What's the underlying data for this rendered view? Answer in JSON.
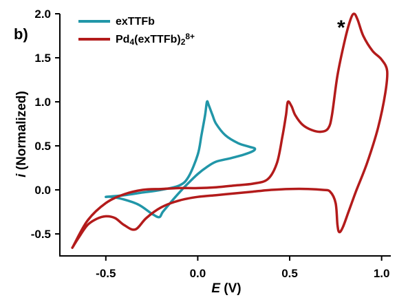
{
  "chart_data": {
    "type": "line",
    "panel_label": "b)",
    "xlabel_var": "E",
    "xlabel_unit": " (V)",
    "ylabel_var": "i",
    "ylabel_rest": " (Normalized)",
    "xlim": [
      -0.75,
      1.05
    ],
    "ylim": [
      -0.75,
      2.0
    ],
    "x_ticks": [
      -0.5,
      0.0,
      0.5,
      1.0
    ],
    "x_tick_labels": [
      "-0.5",
      "0.0",
      "0.5",
      "1.0"
    ],
    "y_ticks": [
      -0.5,
      0.0,
      0.5,
      1.0,
      1.5,
      2.0
    ],
    "y_tick_labels": [
      "-0.5",
      "0.0",
      "0.5",
      "1.0",
      "1.5",
      "2.0"
    ],
    "grid": false,
    "legend_position": "top-left",
    "annotation": {
      "text": "*",
      "x": 0.78,
      "y": 1.86
    },
    "series": [
      {
        "name": "exTTFb",
        "legend_parts": [
          {
            "text": "exTTFb",
            "kind": "normal"
          }
        ],
        "color": "#2196a8",
        "x": [
          -0.5,
          -0.4,
          -0.3,
          -0.2,
          -0.1,
          -0.05,
          0.0,
          0.02,
          0.04,
          0.05,
          0.06,
          0.08,
          0.1,
          0.15,
          0.22,
          0.28,
          0.31,
          0.3,
          0.25,
          0.18,
          0.1,
          0.05,
          0.0,
          -0.05,
          -0.1,
          -0.15,
          -0.19,
          -0.21,
          -0.25,
          -0.32,
          -0.4,
          -0.47,
          -0.5
        ],
        "y": [
          -0.08,
          -0.06,
          -0.03,
          0.0,
          0.05,
          0.15,
          0.4,
          0.62,
          0.85,
          1.0,
          0.96,
          0.85,
          0.75,
          0.62,
          0.53,
          0.49,
          0.47,
          0.44,
          0.4,
          0.36,
          0.32,
          0.26,
          0.18,
          0.08,
          -0.03,
          -0.15,
          -0.25,
          -0.31,
          -0.27,
          -0.17,
          -0.11,
          -0.08,
          -0.08
        ]
      },
      {
        "name": "Pd4(exTTFb)2 8+",
        "legend_parts": [
          {
            "text": "Pd",
            "kind": "normal"
          },
          {
            "text": "4",
            "kind": "sub"
          },
          {
            "text": "(exTTFb)",
            "kind": "normal"
          },
          {
            "text": "2",
            "kind": "sub"
          },
          {
            "text": "8+",
            "kind": "sup"
          }
        ],
        "color": "#b31b1b",
        "x": [
          -0.68,
          -0.6,
          -0.5,
          -0.4,
          -0.3,
          -0.2,
          -0.1,
          0.0,
          0.1,
          0.2,
          0.3,
          0.38,
          0.43,
          0.46,
          0.48,
          0.49,
          0.51,
          0.53,
          0.57,
          0.62,
          0.67,
          0.71,
          0.73,
          0.76,
          0.8,
          0.83,
          0.85,
          0.87,
          0.9,
          0.95,
          1.0,
          1.03,
          1.02,
          0.98,
          0.92,
          0.86,
          0.82,
          0.79,
          0.77,
          0.76,
          0.75,
          0.72,
          0.68,
          0.6,
          0.5,
          0.4,
          0.3,
          0.2,
          0.1,
          0.0,
          -0.1,
          -0.2,
          -0.28,
          -0.34,
          -0.4,
          -0.45,
          -0.5,
          -0.55,
          -0.6,
          -0.65,
          -0.68,
          -0.68
        ],
        "y": [
          -0.65,
          -0.35,
          -0.15,
          -0.05,
          0.0,
          0.01,
          0.02,
          0.02,
          0.03,
          0.05,
          0.07,
          0.12,
          0.3,
          0.6,
          0.85,
          1.0,
          0.95,
          0.85,
          0.74,
          0.68,
          0.66,
          0.7,
          0.85,
          1.3,
          1.7,
          1.93,
          2.0,
          1.93,
          1.75,
          1.58,
          1.48,
          1.35,
          1.1,
          0.7,
          0.3,
          -0.02,
          -0.25,
          -0.42,
          -0.48,
          -0.4,
          -0.15,
          -0.02,
          0.0,
          0.01,
          0.01,
          0.0,
          -0.02,
          -0.04,
          -0.06,
          -0.08,
          -0.12,
          -0.2,
          -0.32,
          -0.45,
          -0.4,
          -0.32,
          -0.3,
          -0.33,
          -0.4,
          -0.55,
          -0.65,
          -0.65
        ]
      }
    ]
  }
}
